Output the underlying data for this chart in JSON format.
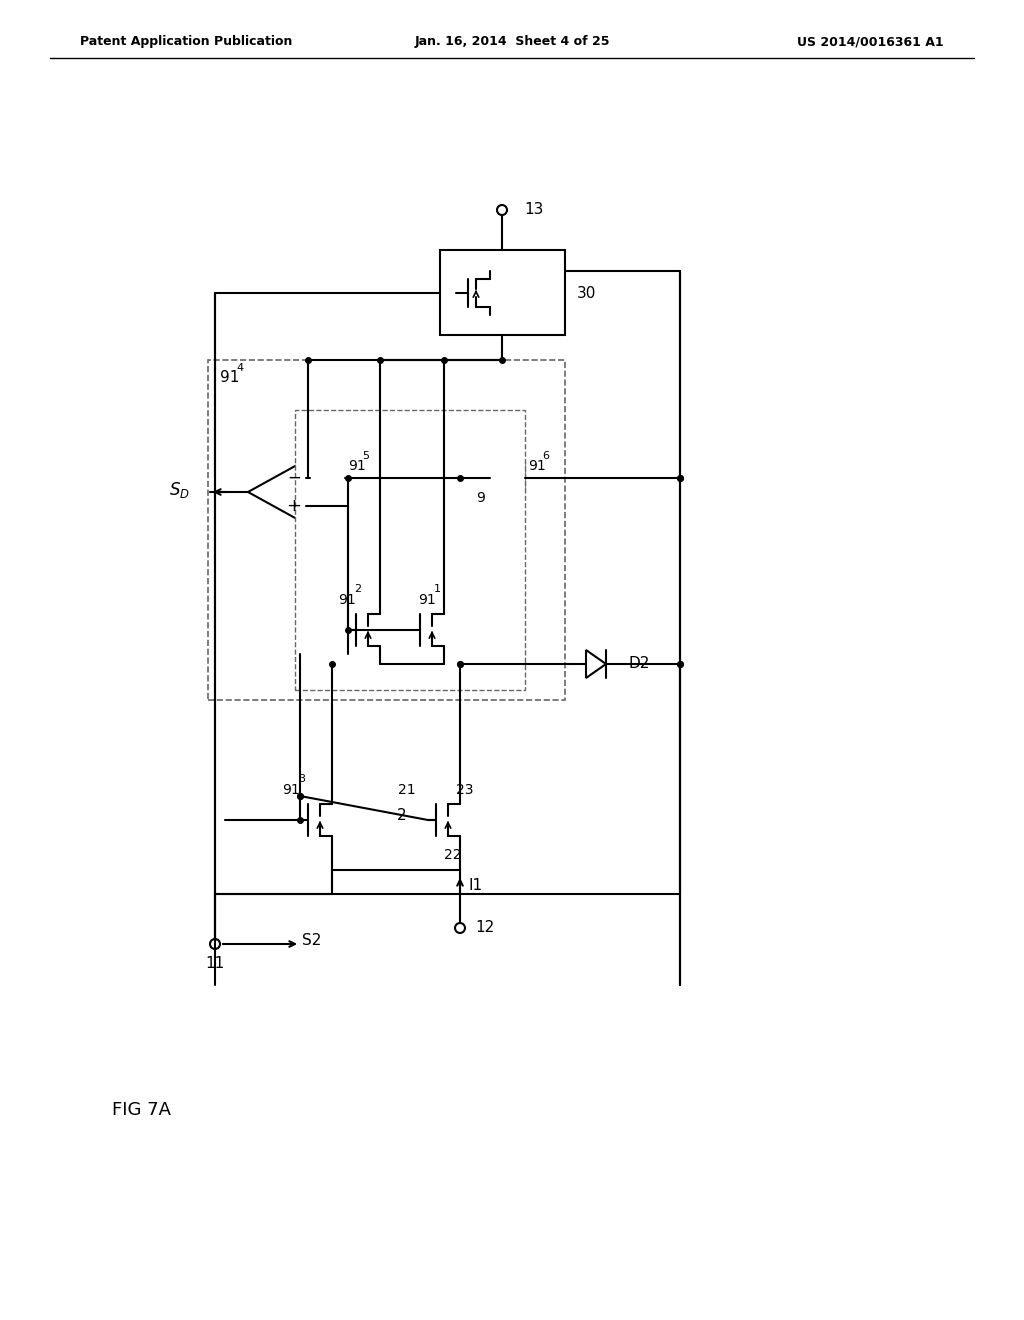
{
  "bg_color": "#ffffff",
  "line_color": "#000000",
  "header_left": "Patent Application Publication",
  "header_center": "Jan. 16, 2014  Sheet 4 of 25",
  "header_right": "US 2014/0016361 A1",
  "fig_label": "FIG 7A"
}
